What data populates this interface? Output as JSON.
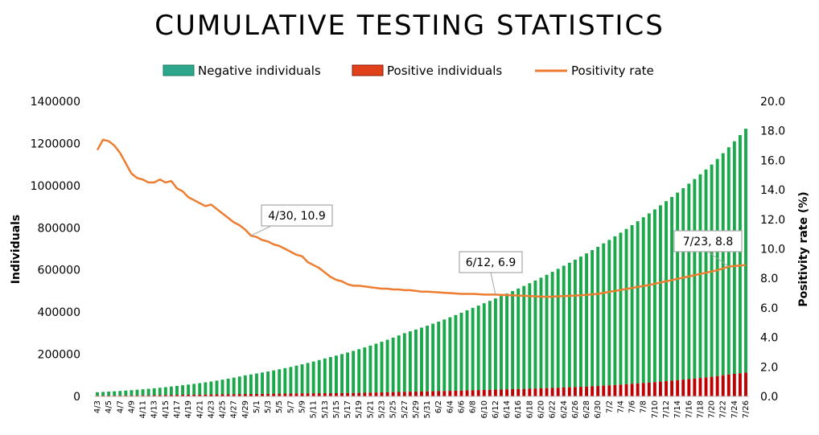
{
  "chart_data": {
    "type": "bar+line",
    "title": "CUMULATIVE TESTING STATISTICS",
    "left_axis": {
      "label": "Individuals",
      "ylim": [
        0,
        1400000
      ],
      "ticks": [
        "0",
        "200000",
        "400000",
        "600000",
        "800000",
        "1000000",
        "1200000",
        "1400000"
      ]
    },
    "right_axis": {
      "label": "Positivity rate (%)",
      "ylim": [
        0,
        20
      ],
      "ticks": [
        "0.0",
        "2.0",
        "4.0",
        "6.0",
        "8.0",
        "10.0",
        "12.0",
        "14.0",
        "16.0",
        "18.0",
        "20.0"
      ]
    },
    "start_date": "2020-04-03",
    "end_date": "2020-07-26",
    "legend": {
      "placement": "top",
      "negative": "Negative individuals",
      "positive": "Positive individuals",
      "rate": "Positivity rate"
    },
    "colors": {
      "negative": "#1aa84a",
      "positive": "#c00000",
      "rate": "#ed7d31",
      "legend_negative": "#2ea68b",
      "legend_positive": "#e0401a"
    },
    "total_anchors": [
      [
        "2020-04-03",
        20000
      ],
      [
        "2020-04-17",
        50000
      ],
      [
        "2020-04-29",
        100000
      ],
      [
        "2020-05-13",
        180000
      ],
      [
        "2020-05-27",
        300000
      ],
      [
        "2020-06-08",
        420000
      ],
      [
        "2020-06-12",
        465000
      ],
      [
        "2020-06-24",
        620000
      ],
      [
        "2020-07-08",
        850000
      ],
      [
        "2020-07-20",
        1100000
      ],
      [
        "2020-07-26",
        1270000
      ]
    ],
    "rate_anchors": [
      [
        "2020-04-03",
        16.7
      ],
      [
        "2020-04-04",
        17.4
      ],
      [
        "2020-04-05",
        17.3
      ],
      [
        "2020-04-06",
        17.0
      ],
      [
        "2020-04-07",
        16.5
      ],
      [
        "2020-04-08",
        15.8
      ],
      [
        "2020-04-09",
        15.1
      ],
      [
        "2020-04-10",
        14.8
      ],
      [
        "2020-04-11",
        14.7
      ],
      [
        "2020-04-12",
        14.5
      ],
      [
        "2020-04-13",
        14.5
      ],
      [
        "2020-04-14",
        14.7
      ],
      [
        "2020-04-15",
        14.5
      ],
      [
        "2020-04-16",
        14.6
      ],
      [
        "2020-04-17",
        14.1
      ],
      [
        "2020-04-18",
        13.9
      ],
      [
        "2020-04-19",
        13.5
      ],
      [
        "2020-04-20",
        13.3
      ],
      [
        "2020-04-21",
        13.1
      ],
      [
        "2020-04-22",
        12.9
      ],
      [
        "2020-04-23",
        13.0
      ],
      [
        "2020-04-24",
        12.7
      ],
      [
        "2020-04-25",
        12.4
      ],
      [
        "2020-04-26",
        12.1
      ],
      [
        "2020-04-27",
        11.8
      ],
      [
        "2020-04-28",
        11.6
      ],
      [
        "2020-04-29",
        11.3
      ],
      [
        "2020-04-30",
        10.9
      ],
      [
        "2020-05-01",
        10.8
      ],
      [
        "2020-05-02",
        10.6
      ],
      [
        "2020-05-03",
        10.5
      ],
      [
        "2020-05-04",
        10.3
      ],
      [
        "2020-05-05",
        10.2
      ],
      [
        "2020-05-06",
        10.0
      ],
      [
        "2020-05-07",
        9.8
      ],
      [
        "2020-05-08",
        9.6
      ],
      [
        "2020-05-09",
        9.5
      ],
      [
        "2020-05-10",
        9.1
      ],
      [
        "2020-05-11",
        8.9
      ],
      [
        "2020-05-12",
        8.7
      ],
      [
        "2020-05-13",
        8.4
      ],
      [
        "2020-05-14",
        8.1
      ],
      [
        "2020-05-15",
        7.9
      ],
      [
        "2020-05-16",
        7.8
      ],
      [
        "2020-05-17",
        7.6
      ],
      [
        "2020-05-18",
        7.5
      ],
      [
        "2020-05-19",
        7.5
      ],
      [
        "2020-05-20",
        7.45
      ],
      [
        "2020-05-21",
        7.4
      ],
      [
        "2020-05-22",
        7.35
      ],
      [
        "2020-05-23",
        7.3
      ],
      [
        "2020-05-24",
        7.3
      ],
      [
        "2020-05-25",
        7.25
      ],
      [
        "2020-05-26",
        7.25
      ],
      [
        "2020-05-27",
        7.2
      ],
      [
        "2020-05-28",
        7.2
      ],
      [
        "2020-05-29",
        7.15
      ],
      [
        "2020-05-30",
        7.1
      ],
      [
        "2020-05-31",
        7.1
      ],
      [
        "2020-06-02",
        7.05
      ],
      [
        "2020-06-04",
        7.0
      ],
      [
        "2020-06-06",
        6.95
      ],
      [
        "2020-06-08",
        6.95
      ],
      [
        "2020-06-10",
        6.9
      ],
      [
        "2020-06-12",
        6.9
      ],
      [
        "2020-06-15",
        6.85
      ],
      [
        "2020-06-18",
        6.8
      ],
      [
        "2020-06-21",
        6.75
      ],
      [
        "2020-06-24",
        6.8
      ],
      [
        "2020-06-27",
        6.85
      ],
      [
        "2020-06-30",
        6.95
      ],
      [
        "2020-07-03",
        7.15
      ],
      [
        "2020-07-06",
        7.35
      ],
      [
        "2020-07-09",
        7.55
      ],
      [
        "2020-07-12",
        7.8
      ],
      [
        "2020-07-15",
        8.05
      ],
      [
        "2020-07-18",
        8.3
      ],
      [
        "2020-07-21",
        8.55
      ],
      [
        "2020-07-23",
        8.8
      ],
      [
        "2020-07-26",
        8.9
      ]
    ],
    "x_tick_labels": [
      "4/3",
      "4/5",
      "4/7",
      "4/9",
      "4/11",
      "4/13",
      "4/15",
      "4/17",
      "4/19",
      "4/21",
      "4/23",
      "4/25",
      "4/27",
      "4/29",
      "5/1",
      "5/3",
      "5/5",
      "5/7",
      "5/9",
      "5/11",
      "5/13",
      "5/15",
      "5/17",
      "5/19",
      "5/21",
      "5/23",
      "5/25",
      "5/27",
      "5/29",
      "5/31",
      "6/2",
      "6/4",
      "6/6",
      "6/8",
      "6/10",
      "6/12",
      "6/14",
      "6/16",
      "6/18",
      "6/20",
      "6/22",
      "6/24",
      "6/26",
      "6/28",
      "6/30",
      "7/2",
      "7/4",
      "7/6",
      "7/8",
      "7/10",
      "7/12",
      "7/14",
      "7/16",
      "7/18",
      "7/20",
      "7/22",
      "7/24",
      "7/26"
    ],
    "annotations": [
      {
        "date": "2020-04-30",
        "text": "4/30, 10.9"
      },
      {
        "date": "2020-06-12",
        "text": "6/12, 6.9"
      },
      {
        "date": "2020-07-23",
        "text": "7/23, 8.8"
      }
    ]
  }
}
